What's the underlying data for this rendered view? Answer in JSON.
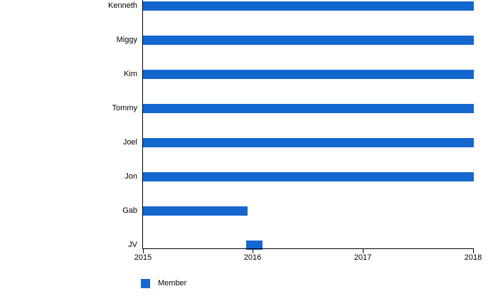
{
  "chart_data": {
    "type": "bar",
    "orientation": "horizontal",
    "title": "",
    "categories": [
      "Kenneth",
      "Miggy",
      "Kim",
      "Tommy",
      "Joel",
      "Jon",
      "Gab",
      "JV"
    ],
    "series": [
      {
        "name": "Member",
        "color": "#1467cf",
        "ranges": [
          [
            2015,
            2018
          ],
          [
            2015,
            2018
          ],
          [
            2015,
            2018
          ],
          [
            2015,
            2018
          ],
          [
            2015,
            2018
          ],
          [
            2015,
            2018
          ],
          [
            2015,
            2015.95
          ],
          [
            2015.94,
            2016.09
          ]
        ]
      }
    ],
    "xlim": [
      2015,
      2018
    ],
    "x_ticks": [
      "2015",
      "2016",
      "2017",
      "2018"
    ],
    "grid": false,
    "legend_position": "bottom-left"
  },
  "colors": {
    "bar": "#1467cf",
    "axis": "#000000",
    "text": "#000000",
    "background": "#ffffff"
  },
  "legend": {
    "label": "Member"
  }
}
